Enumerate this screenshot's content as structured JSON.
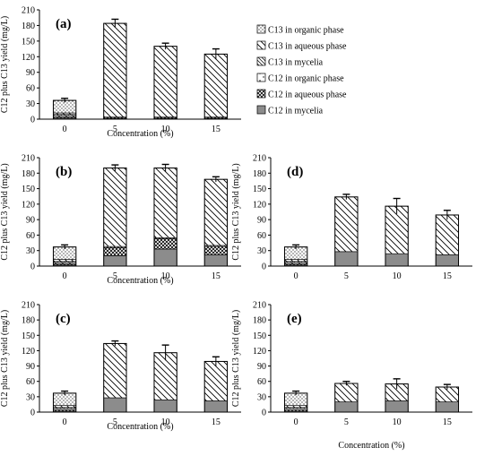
{
  "legend": [
    {
      "label": "C13 in organic phase",
      "pattern": "dots-dense"
    },
    {
      "label": "C13 in aqueous phase",
      "pattern": "diag"
    },
    {
      "label": "C13 in mycelia",
      "pattern": "diag-fine"
    },
    {
      "label": "C12 in organic phase",
      "pattern": "dots-sparse"
    },
    {
      "label": "C12 in aqueous phase",
      "pattern": "cross"
    },
    {
      "label": "C12 in mycelia",
      "pattern": "gray"
    }
  ],
  "chart_data": [
    {
      "type": "bar",
      "stacked": true,
      "panel": "(a)",
      "categories": [
        "0",
        "5",
        "10",
        "15"
      ],
      "xlabel": "Concentration (%)",
      "ylabel": "C12 plus C13 yield (mg/L)",
      "ylim": [
        0,
        210
      ],
      "yticks": [
        0,
        30,
        60,
        90,
        120,
        150,
        180,
        210
      ],
      "series": [
        {
          "name": "C12 in mycelia",
          "values": [
            2,
            1,
            1,
            1
          ]
        },
        {
          "name": "C12 in aqueous phase",
          "values": [
            2,
            2,
            2,
            2
          ]
        },
        {
          "name": "C12 in organic phase",
          "values": [
            3,
            0,
            0,
            0
          ]
        },
        {
          "name": "C13 in mycelia",
          "values": [
            2,
            1,
            1,
            1
          ]
        },
        {
          "name": "C13 in aqueous phase",
          "values": [
            3,
            180,
            136,
            121
          ]
        },
        {
          "name": "C13 in organic phase",
          "values": [
            24,
            0,
            0,
            0
          ]
        }
      ],
      "totals": [
        36,
        184,
        140,
        125
      ],
      "errors": [
        4,
        8,
        6,
        10
      ]
    },
    {
      "type": "bar",
      "stacked": true,
      "panel": "(b)",
      "categories": [
        "0",
        "5",
        "10",
        "15"
      ],
      "xlabel": "Concentration (%)",
      "ylabel": "C12 plus C13 yield (mg/L)",
      "ylim": [
        0,
        210
      ],
      "yticks": [
        0,
        30,
        60,
        90,
        120,
        150,
        180,
        210
      ],
      "series": [
        {
          "name": "C12 in mycelia",
          "values": [
            2,
            20,
            33,
            22
          ]
        },
        {
          "name": "C12 in aqueous phase",
          "values": [
            2,
            16,
            20,
            16
          ]
        },
        {
          "name": "C12 in organic phase",
          "values": [
            3,
            0,
            0,
            0
          ]
        },
        {
          "name": "C13 in mycelia",
          "values": [
            2,
            2,
            2,
            2
          ]
        },
        {
          "name": "C13 in aqueous phase",
          "values": [
            4,
            152,
            135,
            128
          ]
        },
        {
          "name": "C13 in organic phase",
          "values": [
            24,
            0,
            0,
            0
          ]
        }
      ],
      "totals": [
        37,
        190,
        190,
        168
      ],
      "errors": [
        4,
        6,
        7,
        5
      ]
    },
    {
      "type": "bar",
      "stacked": true,
      "panel": "(d)",
      "categories": [
        "0",
        "5",
        "10",
        "15"
      ],
      "xlabel": "",
      "ylabel": "C12 plus C13 yield (mg/L)",
      "ylim": [
        0,
        210
      ],
      "yticks": [
        0,
        30,
        60,
        90,
        120,
        150,
        180,
        210
      ],
      "series": [
        {
          "name": "C12 in mycelia",
          "values": [
            2,
            28,
            24,
            22
          ]
        },
        {
          "name": "C12 in aqueous phase",
          "values": [
            2,
            0,
            0,
            0
          ]
        },
        {
          "name": "C12 in organic phase",
          "values": [
            3,
            0,
            0,
            0
          ]
        },
        {
          "name": "C13 in mycelia",
          "values": [
            2,
            0,
            0,
            0
          ]
        },
        {
          "name": "C13 in aqueous phase",
          "values": [
            4,
            106,
            92,
            77
          ]
        },
        {
          "name": "C13 in organic phase",
          "values": [
            24,
            0,
            0,
            0
          ]
        }
      ],
      "totals": [
        37,
        134,
        116,
        99
      ],
      "errors": [
        4,
        5,
        15,
        9
      ]
    },
    {
      "type": "bar",
      "stacked": true,
      "panel": "(c)",
      "categories": [
        "0",
        "5",
        "10",
        "15"
      ],
      "xlabel": "Concentration (%)",
      "ylabel": "C12 plus C13 yield (mg/L)",
      "ylim": [
        0,
        210
      ],
      "yticks": [
        0,
        30,
        60,
        90,
        120,
        150,
        180,
        210
      ],
      "series": [
        {
          "name": "C12 in mycelia",
          "values": [
            2,
            28,
            24,
            22
          ]
        },
        {
          "name": "C12 in aqueous phase",
          "values": [
            2,
            0,
            0,
            0
          ]
        },
        {
          "name": "C12 in organic phase",
          "values": [
            3,
            0,
            0,
            0
          ]
        },
        {
          "name": "C13 in mycelia",
          "values": [
            2,
            0,
            0,
            0
          ]
        },
        {
          "name": "C13 in aqueous phase",
          "values": [
            4,
            106,
            92,
            77
          ]
        },
        {
          "name": "C13 in organic phase",
          "values": [
            24,
            0,
            0,
            0
          ]
        }
      ],
      "totals": [
        37,
        134,
        116,
        99
      ],
      "errors": [
        4,
        5,
        15,
        9
      ]
    },
    {
      "type": "bar",
      "stacked": true,
      "panel": "(e)",
      "categories": [
        "0",
        "5",
        "10",
        "15"
      ],
      "xlabel": "Concentration (%)",
      "ylabel": "C12 plus C13 yield (mg/L)",
      "ylim": [
        0,
        210
      ],
      "yticks": [
        0,
        30,
        60,
        90,
        120,
        150,
        180,
        210
      ],
      "series": [
        {
          "name": "C12 in mycelia",
          "values": [
            2,
            20,
            22,
            20
          ]
        },
        {
          "name": "C12 in aqueous phase",
          "values": [
            2,
            0,
            0,
            0
          ]
        },
        {
          "name": "C12 in organic phase",
          "values": [
            3,
            0,
            0,
            0
          ]
        },
        {
          "name": "C13 in mycelia",
          "values": [
            2,
            0,
            0,
            0
          ]
        },
        {
          "name": "C13 in aqueous phase",
          "values": [
            4,
            36,
            33,
            29
          ]
        },
        {
          "name": "C13 in organic phase",
          "values": [
            24,
            0,
            0,
            0
          ]
        }
      ],
      "totals": [
        37,
        56,
        55,
        49
      ],
      "errors": [
        4,
        4,
        10,
        5
      ]
    }
  ]
}
